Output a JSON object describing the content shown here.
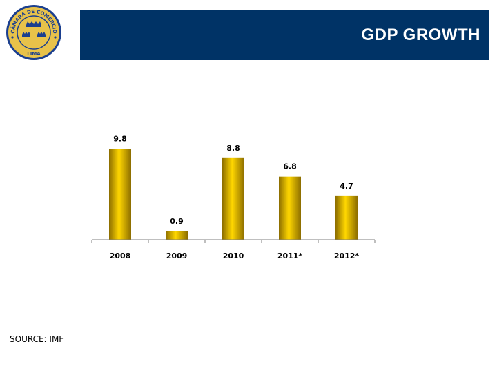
{
  "header": {
    "title": "GDP GROWTH"
  },
  "logo": {
    "top_text": "CÁMARA DE COMERCIO",
    "bottom_text": "LIMA",
    "colors": {
      "ring": "#1b3f8f",
      "fill": "#e8c24a",
      "crown": "#1b3f8f"
    }
  },
  "footer": {
    "source": "SOURCE: IMF"
  },
  "colors": {
    "title_bar": "#003366",
    "bar_light": "#ffd700",
    "bar_dark": "#8c6d00"
  },
  "chart_data": {
    "type": "bar",
    "categories": [
      "2008",
      "2009",
      "2010",
      "2011*",
      "2012*"
    ],
    "values": [
      9.8,
      0.9,
      8.8,
      6.8,
      4.7
    ],
    "data_labels": [
      "9.8",
      "0.9",
      "8.8",
      "6.8",
      "4.7"
    ],
    "title": "",
    "xlabel": "",
    "ylabel": "",
    "ylim": [
      0,
      10
    ],
    "grid": false,
    "legend": "none"
  }
}
